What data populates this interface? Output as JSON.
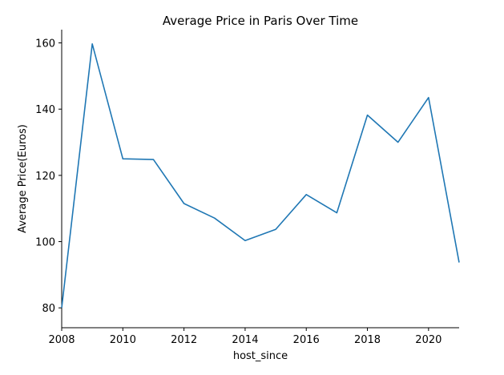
{
  "chart_data": {
    "type": "line",
    "title": "Average Price in Paris Over Time",
    "xlabel": "host_since",
    "ylabel": "Average Price(Euros)",
    "xlim": [
      2008,
      2021
    ],
    "ylim": [
      74,
      164
    ],
    "x_ticks": [
      2008,
      2010,
      2012,
      2014,
      2016,
      2018,
      2020
    ],
    "y_ticks": [
      80,
      100,
      120,
      140,
      160
    ],
    "grid": false,
    "legend": "none",
    "series": [
      {
        "color": "#1f77b4",
        "x": [
          2008,
          2009,
          2010,
          2011,
          2012,
          2013,
          2014,
          2015,
          2016,
          2017,
          2018,
          2019,
          2020,
          2021
        ],
        "y": [
          80.0,
          159.7,
          125.0,
          124.8,
          111.5,
          107.1,
          100.3,
          103.7,
          114.2,
          108.7,
          138.2,
          130.0,
          143.5,
          93.7
        ]
      }
    ]
  }
}
